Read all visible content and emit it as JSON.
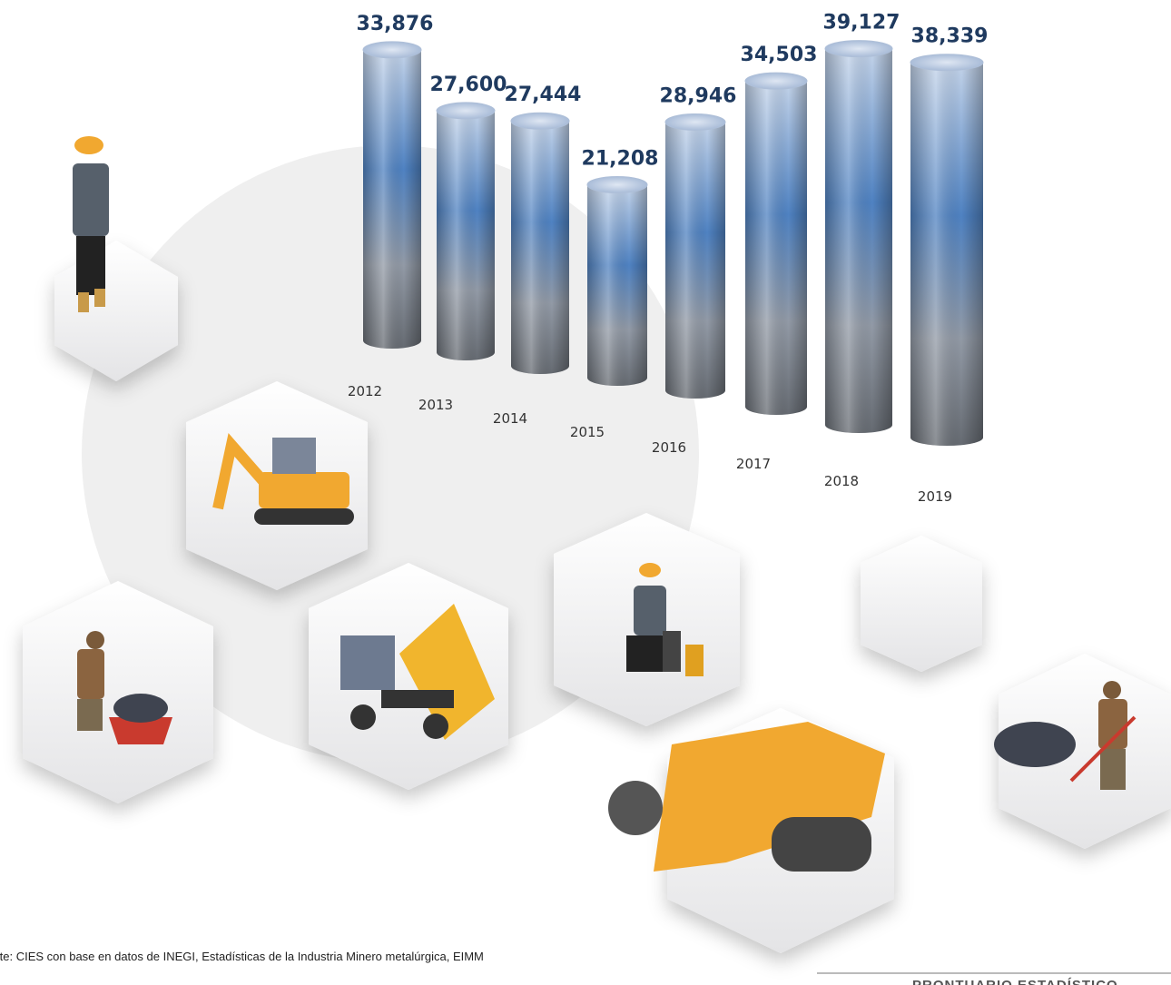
{
  "chart_data": {
    "type": "cylinder-bar",
    "categories": [
      "2012",
      "2013",
      "2014",
      "2015",
      "2016",
      "2017",
      "2018",
      "2019"
    ],
    "values": [
      33876,
      27600,
      27444,
      21208,
      28946,
      34503,
      39127,
      38339
    ],
    "value_labels": [
      "33,876",
      "27,600",
      "27,444",
      "21,208",
      "28,946",
      "34,503",
      "39,127",
      "38,339"
    ],
    "source": "Fuente: CIES con base en datos de INEGI, Estadísticas de la Industria Minero metalúrgica, EIMM",
    "footer": "PRONTUARIO ESTADÍSTICO"
  }
}
